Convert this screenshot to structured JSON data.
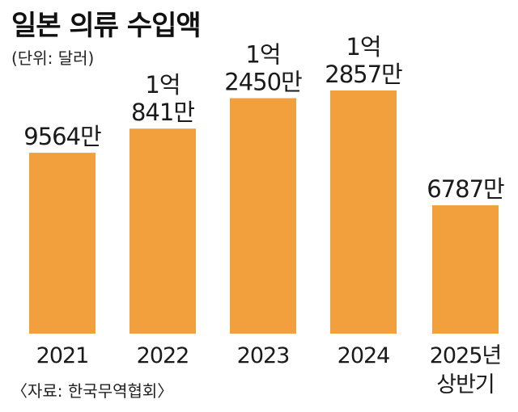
{
  "chart_data": {
    "type": "bar",
    "title": "일본 의류 수입액",
    "subtitle": "(단위: 달러)",
    "source": "〈자료: 한국무역협회〉",
    "categories": [
      "2021",
      "2022",
      "2023",
      "2024",
      "2025년 상반기"
    ],
    "category_lines": [
      [
        "2021"
      ],
      [
        "2022"
      ],
      [
        "2023"
      ],
      [
        "2024"
      ],
      [
        "2025년",
        "상반기"
      ]
    ],
    "values": [
      95640000,
      108410000,
      124500000,
      128570000,
      67870000
    ],
    "value_labels": [
      [
        "9564만"
      ],
      [
        "1억",
        "841만"
      ],
      [
        "1억",
        "2450만"
      ],
      [
        "1억",
        "2857만"
      ],
      [
        "6787만"
      ]
    ],
    "ylim": [
      0,
      140000000
    ],
    "grid": false,
    "legend": "none",
    "bar_color": "#f2a03d"
  }
}
